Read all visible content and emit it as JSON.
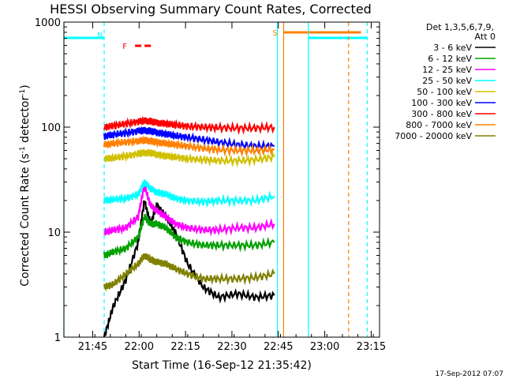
{
  "chart_data": {
    "type": "line",
    "title": "HESSI Observing Summary Count Rates, Corrected",
    "xlabel": "Start Time (16-Sep-12 21:35:42)",
    "ylabel": "Corrected Count Rate (s",
    "ylabel_sup": "-1",
    "ylabel_mid": " detector",
    "ylabel_sup2": "-1",
    "ylabel_end": ")",
    "y_scale": "log",
    "ylim": [
      1,
      1000
    ],
    "xlim_minutes": [
      0,
      102
    ],
    "x_tick_labels": [
      {
        "label": "21:45",
        "minute": 9.3
      },
      {
        "label": "22:00",
        "minute": 24.3
      },
      {
        "label": "22:15",
        "minute": 39.3
      },
      {
        "label": "22:30",
        "minute": 54.3
      },
      {
        "label": "22:45",
        "minute": 69.3
      },
      {
        "label": "23:00",
        "minute": 84.3
      },
      {
        "label": "23:15",
        "minute": 99.3
      }
    ],
    "y_tick_labels": [
      {
        "label": "1",
        "value": 1
      },
      {
        "label": "10",
        "value": 10
      },
      {
        "label": "100",
        "value": 100
      },
      {
        "label": "1000",
        "value": 1000
      }
    ],
    "legend": {
      "header1": "Det 1,3,5,6,7,9,",
      "header2": "Att 0",
      "placement": "right"
    },
    "series": [
      {
        "name": "3 - 6 keV",
        "color": "#000000",
        "x": [
          13,
          16,
          20,
          24,
          26,
          28,
          30,
          33,
          36,
          40,
          45,
          50,
          56,
          62,
          68
        ],
        "y": [
          1.0,
          2.0,
          3.5,
          8,
          20,
          12,
          18,
          14,
          10,
          5,
          3,
          2.4,
          2.6,
          2.4,
          2.5
        ]
      },
      {
        "name": "6 - 12 keV",
        "color": "#00a000",
        "x": [
          13,
          16,
          20,
          24,
          26,
          28,
          30,
          33,
          36,
          40,
          45,
          50,
          56,
          62,
          68
        ],
        "y": [
          6,
          6.5,
          7,
          9,
          14,
          12,
          12,
          11,
          9,
          8,
          7.5,
          7.5,
          7.5,
          7.5,
          8
        ]
      },
      {
        "name": "12 - 25 keV",
        "color": "#ff00ff",
        "x": [
          13,
          16,
          20,
          24,
          26,
          28,
          30,
          33,
          36,
          40,
          45,
          50,
          56,
          62,
          68
        ],
        "y": [
          10,
          10.5,
          11,
          14,
          28,
          18,
          16,
          14,
          12,
          11,
          10.5,
          10.5,
          11,
          11,
          12
        ]
      },
      {
        "name": "25 - 50 keV",
        "color": "#00ffff",
        "x": [
          13,
          16,
          20,
          24,
          26,
          28,
          30,
          33,
          36,
          40,
          45,
          50,
          56,
          62,
          68
        ],
        "y": [
          20,
          20.5,
          21,
          23,
          30,
          26,
          24,
          23,
          21,
          20,
          19.5,
          20,
          20,
          20,
          22
        ]
      },
      {
        "name": "50 - 100 keV",
        "color": "#d0c000",
        "x": [
          13,
          16,
          20,
          24,
          26,
          28,
          30,
          33,
          36,
          40,
          45,
          50,
          56,
          62,
          68
        ],
        "y": [
          50,
          51,
          53,
          56,
          57,
          57,
          55,
          53,
          52,
          50,
          49,
          48,
          48,
          49,
          52
        ]
      },
      {
        "name": "100 - 300 keV",
        "color": "#0000ff",
        "x": [
          13,
          16,
          20,
          24,
          26,
          28,
          30,
          33,
          36,
          40,
          45,
          50,
          56,
          62,
          68
        ],
        "y": [
          82,
          85,
          88,
          92,
          93,
          92,
          89,
          86,
          83,
          80,
          76,
          72,
          68,
          66,
          66
        ]
      },
      {
        "name": "300 - 800 keV",
        "color": "#ff0000",
        "x": [
          13,
          16,
          20,
          24,
          26,
          28,
          30,
          33,
          36,
          40,
          45,
          50,
          56,
          62,
          68
        ],
        "y": [
          100,
          103,
          108,
          113,
          115,
          114,
          110,
          108,
          105,
          102,
          100,
          99,
          98,
          98,
          100
        ]
      },
      {
        "name": "800 - 7000 keV",
        "color": "#ff8000",
        "x": [
          13,
          16,
          20,
          24,
          26,
          28,
          30,
          33,
          36,
          40,
          45,
          50,
          56,
          62,
          68
        ],
        "y": [
          68,
          70,
          72,
          74,
          75,
          74,
          72,
          70,
          68,
          66,
          63,
          61,
          60,
          60,
          61
        ]
      },
      {
        "name": "7000 - 20000 keV",
        "color": "#808000",
        "x": [
          13,
          16,
          20,
          24,
          26,
          28,
          30,
          33,
          36,
          40,
          45,
          50,
          56,
          62,
          68
        ],
        "y": [
          3,
          3.2,
          4,
          5,
          6,
          5.5,
          5.2,
          5,
          4.5,
          4,
          3.6,
          3.6,
          3.6,
          3.7,
          4
        ]
      }
    ],
    "flag_bars": [
      {
        "label": "N",
        "color": "#00ffff",
        "start_minute": 0,
        "end_minute": 13
      },
      {
        "label": "F",
        "color": "#ff0000",
        "dashed": true,
        "start_minute": 23,
        "end_minute": 29
      },
      {
        "label": "S",
        "color": "#ff8000",
        "start_minute": 71,
        "end_minute": 96
      },
      {
        "label": "",
        "color": "#00ffff",
        "start_minute": 79,
        "end_minute": 98
      }
    ],
    "vertical_markers": [
      {
        "color": "#00ffff",
        "minute": 0,
        "dashed": false
      },
      {
        "color": "#00ffff",
        "minute": 13,
        "dashed": true
      },
      {
        "color": "#00ffff",
        "minute": 69,
        "dashed": false
      },
      {
        "color": "#ff8000",
        "minute": 71,
        "dashed": false
      },
      {
        "color": "#00ffff",
        "minute": 79,
        "dashed": false
      },
      {
        "color": "#ff8000",
        "minute": 92,
        "dashed": true
      },
      {
        "color": "#00ffff",
        "minute": 98,
        "dashed": true
      }
    ],
    "grid": false
  },
  "footer": {
    "timestamp": "17-Sep-2012 07:07"
  }
}
